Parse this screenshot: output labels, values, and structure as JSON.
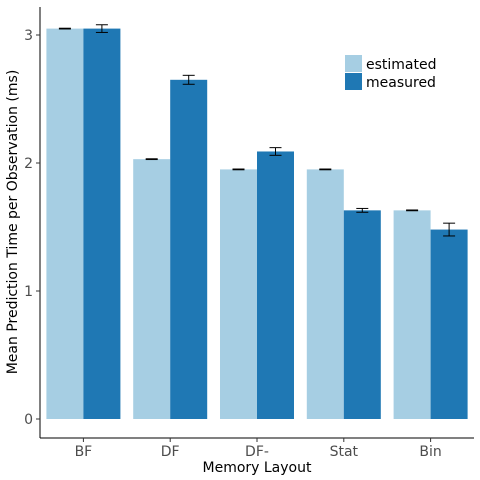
{
  "chart_data": {
    "type": "bar",
    "title": "",
    "xlabel": "Memory Layout",
    "ylabel": "Mean Prediction Time per Observation (ms)",
    "categories": [
      "BF",
      "DF",
      "DF-",
      "Stat",
      "Bin"
    ],
    "series": [
      {
        "name": "estimated",
        "color": "#a6cee3",
        "values": [
          3.05,
          2.03,
          1.95,
          1.95,
          1.63
        ],
        "error": [
          0.003,
          0.003,
          0.003,
          0.003,
          0.003
        ]
      },
      {
        "name": "measured",
        "color": "#1f78b4",
        "values": [
          3.05,
          2.65,
          2.09,
          1.63,
          1.48
        ],
        "error": [
          0.03,
          0.035,
          0.03,
          0.015,
          0.05
        ]
      }
    ],
    "yticks": [
      0,
      1,
      2,
      3
    ],
    "ylim": [
      -0.1,
      3.2
    ],
    "grid": false,
    "legend_position": "top-right"
  }
}
